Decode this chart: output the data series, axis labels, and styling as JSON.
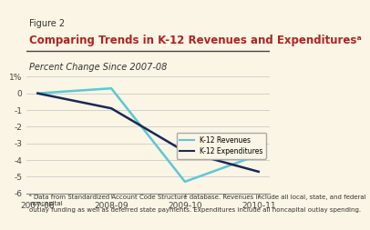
{
  "figure_label": "Figure 2",
  "title": "Comparing Trends in K-12 Revenues and Expendituresᵃ",
  "ylabel": "Percent Change Since 2007-08",
  "x_labels": [
    "2007-08",
    "2008-09",
    "2009-10",
    "2010-11"
  ],
  "x_values": [
    0,
    1,
    2,
    3
  ],
  "revenues": [
    0,
    0.3,
    -5.3,
    -3.7
  ],
  "expenditures": [
    0,
    -0.9,
    -3.5,
    -4.7
  ],
  "revenue_color": "#5bc8d5",
  "expenditure_color": "#1a2856",
  "ylim": [
    -6,
    1
  ],
  "yticks": [
    1,
    0,
    -1,
    -2,
    -3,
    -4,
    -5,
    -6
  ],
  "ytick_labels": [
    "1%",
    "0",
    "-1",
    "-2",
    "-3",
    "-4",
    "-5",
    "-6"
  ],
  "background_color": "#faf5e4",
  "title_color": "#b22222",
  "figure_label_color": "#333333",
  "footnote": "ᵃ Data from Standardized Account Code Structure database. Revenues include all local, state, and federal noncapital\noutlay funding as well as deferred state payments. Expenditures include all noncapital outlay spending.",
  "legend_revenues": "K-12 Revenues",
  "legend_expenditures": "K-12 Expenditures"
}
